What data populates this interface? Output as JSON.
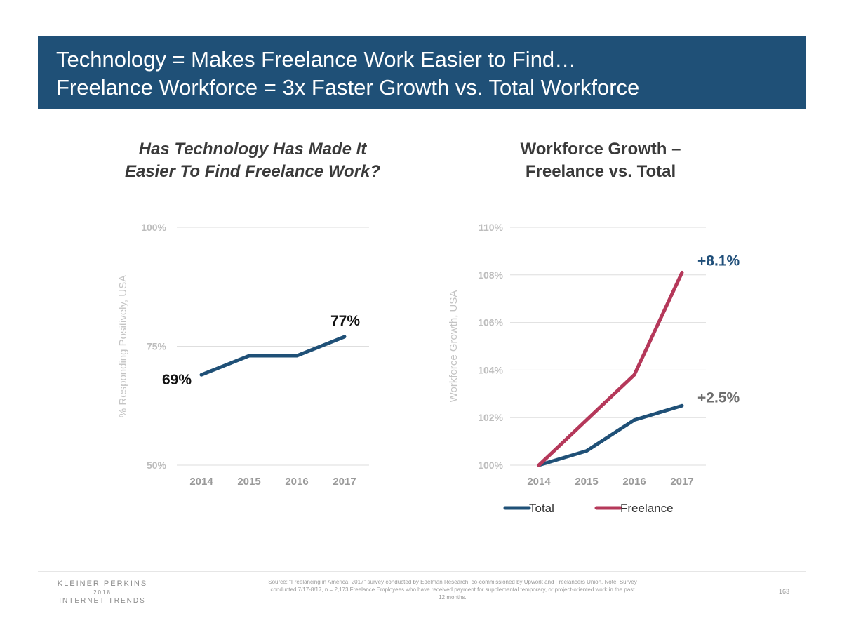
{
  "header": {
    "line1": "Technology = Makes Freelance Work Easier to Find…",
    "line2": "Freelance Workforce = 3x Faster Growth vs. Total Workforce"
  },
  "chart_data": [
    {
      "type": "line",
      "title_line1": "Has Technology Has Made It",
      "title_line2": "Easier To Find Freelance Work?",
      "ylabel": "% Responding Positively, USA",
      "xlabel": "",
      "categories": [
        "2014",
        "2015",
        "2016",
        "2017"
      ],
      "series": [
        {
          "name": "% Responding Positively",
          "values": [
            69,
            73,
            73,
            77
          ],
          "color": "#1f5077"
        }
      ],
      "yticks": [
        50,
        75,
        100
      ],
      "ytick_labels": [
        "50%",
        "75%",
        "100%"
      ],
      "ylim": [
        50,
        100
      ],
      "annotations": [
        {
          "label": "69%",
          "category": "2014",
          "value": 69
        },
        {
          "label": "77%",
          "category": "2017",
          "value": 77
        }
      ],
      "grid": true
    },
    {
      "type": "line",
      "title_line1": "Workforce Growth –",
      "title_line2": "Freelance vs. Total",
      "ylabel": "Workforce Growth, USA",
      "xlabel": "",
      "categories": [
        "2014",
        "2015",
        "2016",
        "2017"
      ],
      "series": [
        {
          "name": "Total",
          "values": [
            100,
            100.6,
            101.9,
            102.5
          ],
          "color": "#1f5077"
        },
        {
          "name": "Freelance",
          "values": [
            100,
            101.9,
            103.8,
            108.1
          ],
          "color": "#b5385a"
        }
      ],
      "yticks": [
        100,
        102,
        104,
        106,
        108,
        110
      ],
      "ytick_labels": [
        "100%",
        "102%",
        "104%",
        "106%",
        "108%",
        "110%"
      ],
      "ylim": [
        100,
        110
      ],
      "annotations": [
        {
          "label": "+8.1%",
          "series": "Freelance",
          "category": "2017",
          "value": 108.1
        },
        {
          "label": "+2.5%",
          "series": "Total",
          "category": "2017",
          "value": 102.5
        }
      ],
      "legend": "bottom",
      "grid": true
    }
  ],
  "footer": {
    "brand_name": "KLEINER PERKINS",
    "brand_year": "2018",
    "brand_report": "INTERNET TRENDS",
    "source": "Source: \"Freelancing in America: 2017\" survey conducted by Edelman Research, co-commissioned by Upwork and Freelancers Union. Note: Survey conducted 7/17-8/17, n = 2,173 Freelance Employees who have received payment for supplemental temporary, or project-oriented work in the past 12 months.",
    "page_number": "163"
  }
}
